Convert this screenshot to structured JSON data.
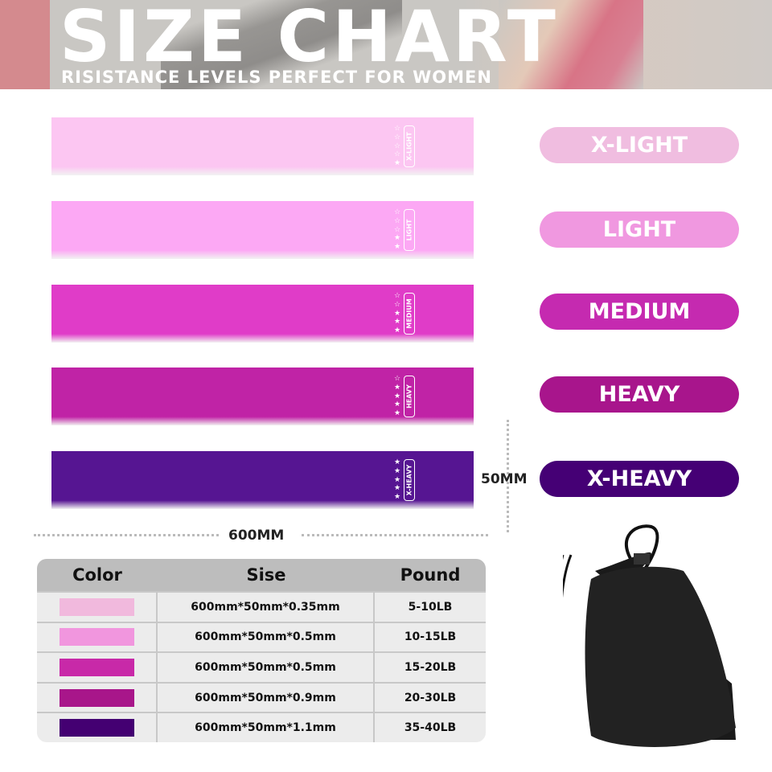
{
  "header": {
    "title": "SIZE CHART",
    "subtitle": "RISISTANCE LEVELS PERFECT FOR WOMEN"
  },
  "bands": [
    {
      "label": "X-LIGHT",
      "color": "#fcc6f2",
      "stars_filled": 1
    },
    {
      "label": "LIGHT",
      "color": "#fca8f4",
      "stars_filled": 2
    },
    {
      "label": "MEDIUM",
      "color": "#e03cc8",
      "stars_filled": 3
    },
    {
      "label": "HEAVY",
      "color": "#c023a6",
      "stars_filled": 4
    },
    {
      "label": "X-HEAVY",
      "color": "#561592",
      "stars_filled": 5
    }
  ],
  "levels": [
    {
      "label": "X-LIGHT",
      "color": "#f0bde0"
    },
    {
      "label": "LIGHT",
      "color": "#f098e0"
    },
    {
      "label": "MEDIUM",
      "color": "#c52ab0"
    },
    {
      "label": "HEAVY",
      "color": "#a8158c"
    },
    {
      "label": "X-HEAVY",
      "color": "#450075"
    }
  ],
  "dimensions": {
    "length": "600MM",
    "width": "50MM"
  },
  "table": {
    "headers": [
      "Color",
      "Sise",
      "Pound"
    ],
    "rows": [
      {
        "color": "#f1b9dd",
        "size": "600mm*50mm*0.35mm",
        "pound": "5-10LB"
      },
      {
        "color": "#f196de",
        "size": "600mm*50mm*0.5mm",
        "pound": "10-15LB"
      },
      {
        "color": "#c829a8",
        "size": "600mm*50mm*0.5mm",
        "pound": "15-20LB"
      },
      {
        "color": "#a8168a",
        "size": "600mm*50mm*0.9mm",
        "pound": "20-30LB"
      },
      {
        "color": "#440072",
        "size": "600mm*50mm*1.1mm",
        "pound": "35-40LB"
      }
    ]
  }
}
